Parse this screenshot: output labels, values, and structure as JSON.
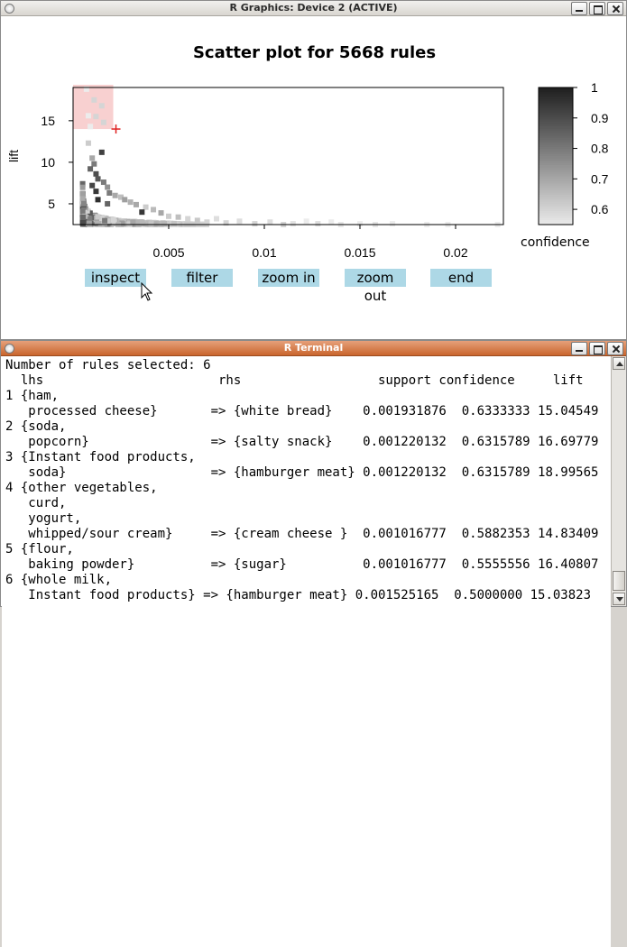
{
  "graphics_window": {
    "title": "R Graphics: Device 2 (ACTIVE)",
    "plot_title": "Scatter plot for 5668 rules",
    "buttons": {
      "inspect": "inspect",
      "filter": "filter",
      "zoom_in": "zoom in",
      "zoom_out": "zoom out",
      "end": "end"
    }
  },
  "chart_data": {
    "type": "scatter",
    "title": "Scatter plot for 5668 rules",
    "xlabel": "",
    "ylabel": "lift",
    "x_ticks": [
      "0.005",
      "0.01",
      "0.015",
      "0.02"
    ],
    "y_ticks": [
      "5",
      "10",
      "15"
    ],
    "xlim": [
      0.0,
      0.0225
    ],
    "ylim": [
      2.5,
      19
    ],
    "color_legend": {
      "title": "confidence",
      "ticks": [
        "1",
        "0.9",
        "0.8",
        "0.7",
        "0.6"
      ],
      "range": [
        0.55,
        1.0
      ],
      "low_color": "#ececec",
      "high_color": "#202020"
    },
    "selection_region": {
      "support": [
        0.0,
        0.0021
      ],
      "lift": [
        14.0,
        19.0
      ],
      "color": "#f8d0d0"
    },
    "cursor_mark": {
      "support": 0.0021,
      "lift": 14.0,
      "symbol": "+",
      "color": "#e02020"
    },
    "points": [
      [
        0.0007,
        18.8,
        0.5
      ],
      [
        0.0011,
        17.5,
        0.6
      ],
      [
        0.0015,
        16.8,
        0.6
      ],
      [
        0.0008,
        15.6,
        0.55
      ],
      [
        0.0012,
        15.5,
        0.6
      ],
      [
        0.0016,
        14.8,
        0.6
      ],
      [
        0.0009,
        14.3,
        0.55
      ],
      [
        0.0015,
        11.2,
        0.93
      ],
      [
        0.0008,
        12.3,
        0.62
      ],
      [
        0.001,
        10.5,
        0.7
      ],
      [
        0.0011,
        9.8,
        0.8
      ],
      [
        0.0009,
        9.2,
        0.85
      ],
      [
        0.0012,
        8.6,
        0.9
      ],
      [
        0.0013,
        8.0,
        0.88
      ],
      [
        0.0016,
        7.6,
        0.8
      ],
      [
        0.001,
        7.2,
        0.92
      ],
      [
        0.0018,
        7.0,
        0.75
      ],
      [
        0.0012,
        6.5,
        0.95
      ],
      [
        0.0019,
        6.3,
        0.8
      ],
      [
        0.0022,
        6.0,
        0.7
      ],
      [
        0.0025,
        5.8,
        0.65
      ],
      [
        0.0013,
        5.5,
        0.97
      ],
      [
        0.0027,
        5.5,
        0.72
      ],
      [
        0.003,
        5.2,
        0.68
      ],
      [
        0.0018,
        5.0,
        0.85
      ],
      [
        0.0033,
        4.9,
        0.7
      ],
      [
        0.0038,
        4.6,
        0.62
      ],
      [
        0.0036,
        4.0,
        0.95
      ],
      [
        0.0042,
        4.3,
        0.66
      ],
      [
        0.0046,
        3.9,
        0.7
      ],
      [
        0.005,
        3.5,
        0.62
      ],
      [
        0.0055,
        3.4,
        0.65
      ],
      [
        0.006,
        3.2,
        0.6
      ],
      [
        0.0065,
        3.0,
        0.63
      ],
      [
        0.007,
        2.8,
        0.6
      ],
      [
        0.0075,
        3.2,
        0.58
      ],
      [
        0.008,
        2.7,
        0.6
      ],
      [
        0.0087,
        2.9,
        0.58
      ],
      [
        0.0095,
        2.6,
        0.6
      ],
      [
        0.0103,
        2.8,
        0.58
      ],
      [
        0.011,
        2.5,
        0.6
      ],
      [
        0.0115,
        2.6,
        0.57
      ],
      [
        0.0122,
        2.9,
        0.55
      ],
      [
        0.0128,
        2.6,
        0.58
      ],
      [
        0.0135,
        2.8,
        0.55
      ],
      [
        0.014,
        2.5,
        0.56
      ],
      [
        0.015,
        2.6,
        0.55
      ],
      [
        0.0158,
        2.5,
        0.56
      ],
      [
        0.0167,
        2.6,
        0.55
      ],
      [
        0.0185,
        2.5,
        0.55
      ],
      [
        0.0196,
        2.5,
        0.55
      ],
      [
        0.0222,
        2.5,
        0.55
      ]
    ],
    "dense_band": {
      "support_from": 0.0005,
      "support_to": 0.007,
      "lift_from": 2.5,
      "lift_to": 4.2
    }
  },
  "terminal_window": {
    "title": "R Terminal",
    "lines": [
      "Number of rules selected: 6",
      "  lhs                       rhs                  support confidence     lift",
      "1 {ham,",
      "   processed cheese}       => {white bread}    0.001931876  0.6333333 15.04549",
      "2 {soda,",
      "   popcorn}                => {salty snack}    0.001220132  0.6315789 16.69779",
      "3 {Instant food products,",
      "   soda}                   => {hamburger meat} 0.001220132  0.6315789 18.99565",
      "4 {other vegetables,",
      "   curd,",
      "   yogurt,",
      "   whipped/sour cream}     => {cream cheese }  0.001016777  0.5882353 14.83409",
      "5 {flour,",
      "   baking powder}          => {sugar}          0.001016777  0.5555556 16.40807",
      "6 {whole milk,",
      "   Instant food products} => {hamburger meat} 0.001525165  0.5000000 15.03823"
    ]
  }
}
